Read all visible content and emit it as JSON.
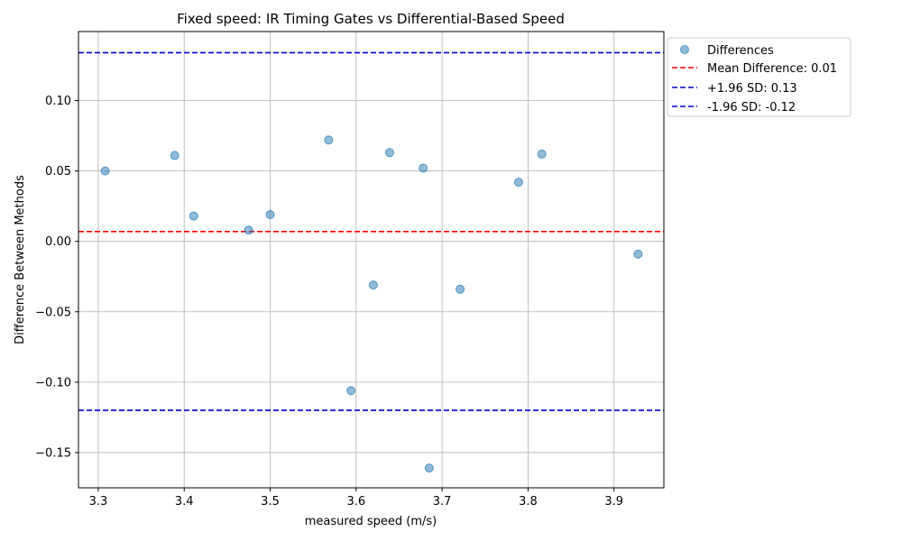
{
  "chart_data": {
    "type": "scatter",
    "title": "Fixed speed: IR Timing Gates vs Differential-Based Speed",
    "xlabel": "measured speed (m/s)",
    "ylabel": "Difference Between Methods",
    "xlim": [
      3.277,
      3.958
    ],
    "ylim": [
      -0.175,
      0.149
    ],
    "xticks": [
      3.3,
      3.4,
      3.5,
      3.6,
      3.7,
      3.8,
      3.9
    ],
    "xtick_labels": [
      "3.3",
      "3.4",
      "3.5",
      "3.6",
      "3.7",
      "3.8",
      "3.9"
    ],
    "yticks": [
      -0.15,
      -0.1,
      -0.05,
      0.0,
      0.05,
      0.1
    ],
    "ytick_labels": [
      "−0.15",
      "−0.10",
      "−0.05",
      "0.00",
      "0.05",
      "0.10"
    ],
    "grid": true,
    "legend_position": "outside-top-right",
    "series": [
      {
        "name": "Differences",
        "kind": "scatter",
        "color": "#1f77b4",
        "x": [
          3.308,
          3.389,
          3.411,
          3.475,
          3.5,
          3.568,
          3.594,
          3.62,
          3.639,
          3.678,
          3.685,
          3.721,
          3.789,
          3.816,
          3.928
        ],
        "y": [
          0.05,
          0.061,
          0.018,
          0.008,
          0.019,
          0.072,
          -0.106,
          -0.031,
          0.063,
          0.052,
          -0.161,
          -0.034,
          0.042,
          0.062,
          -0.009
        ]
      }
    ],
    "reference_lines": [
      {
        "name": "Mean Difference: 0.01",
        "y": 0.007,
        "color": "#ff0000",
        "style": "dashed"
      },
      {
        "name": "+1.96 SD: 0.13",
        "y": 0.134,
        "color": "#0000cc",
        "style": "dashed"
      },
      {
        "name": "-1.96 SD: -0.12",
        "y": -0.12,
        "color": "#0000cc",
        "style": "dashed"
      }
    ]
  }
}
